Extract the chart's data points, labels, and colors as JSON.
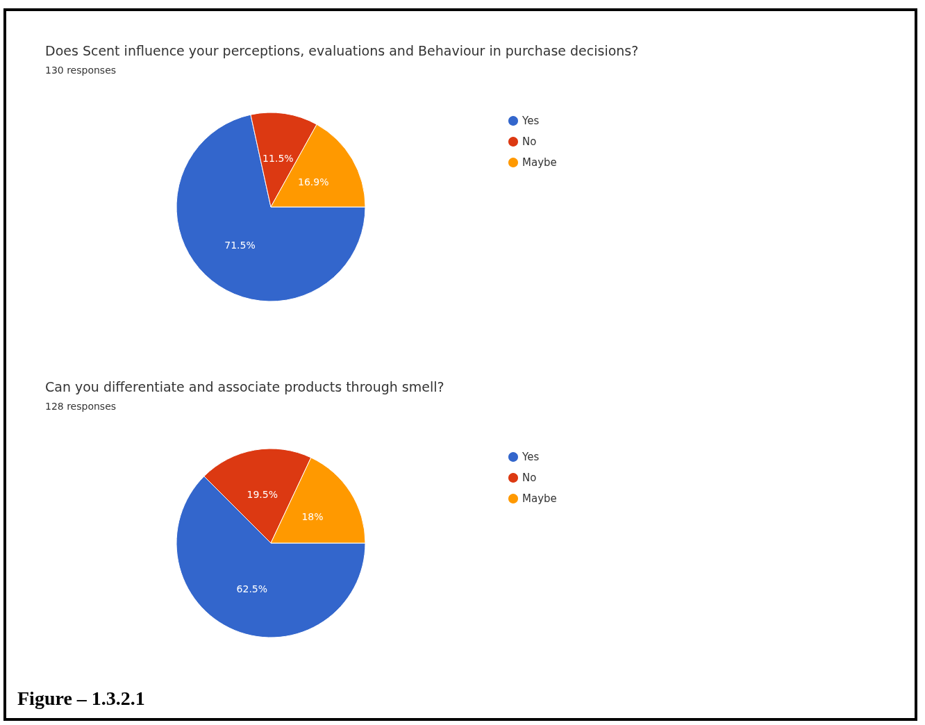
{
  "chart_data": [
    {
      "type": "pie",
      "title": "Does Scent influence your perceptions, evaluations and Behaviour in purchase decisions?",
      "subtitle": "130 responses",
      "categories": [
        "Yes",
        "No",
        "Maybe"
      ],
      "values": [
        71.5,
        11.5,
        16.9
      ],
      "value_labels": [
        "71.5%",
        "11.5%",
        "16.9%"
      ],
      "colors": [
        "#3366cc",
        "#dc3912",
        "#ff9900"
      ],
      "legend": "top right"
    },
    {
      "type": "pie",
      "title": "Can you differentiate and associate products through smell?",
      "subtitle": "128 responses",
      "categories": [
        "Yes",
        "No",
        "Maybe"
      ],
      "values": [
        62.5,
        19.5,
        18
      ],
      "value_labels": [
        "62.5%",
        "19.5%",
        "18%"
      ],
      "colors": [
        "#3366cc",
        "#dc3912",
        "#ff9900"
      ],
      "legend": "top right",
      "annotations": [
        "Figure – 1.3.2.1"
      ]
    }
  ]
}
